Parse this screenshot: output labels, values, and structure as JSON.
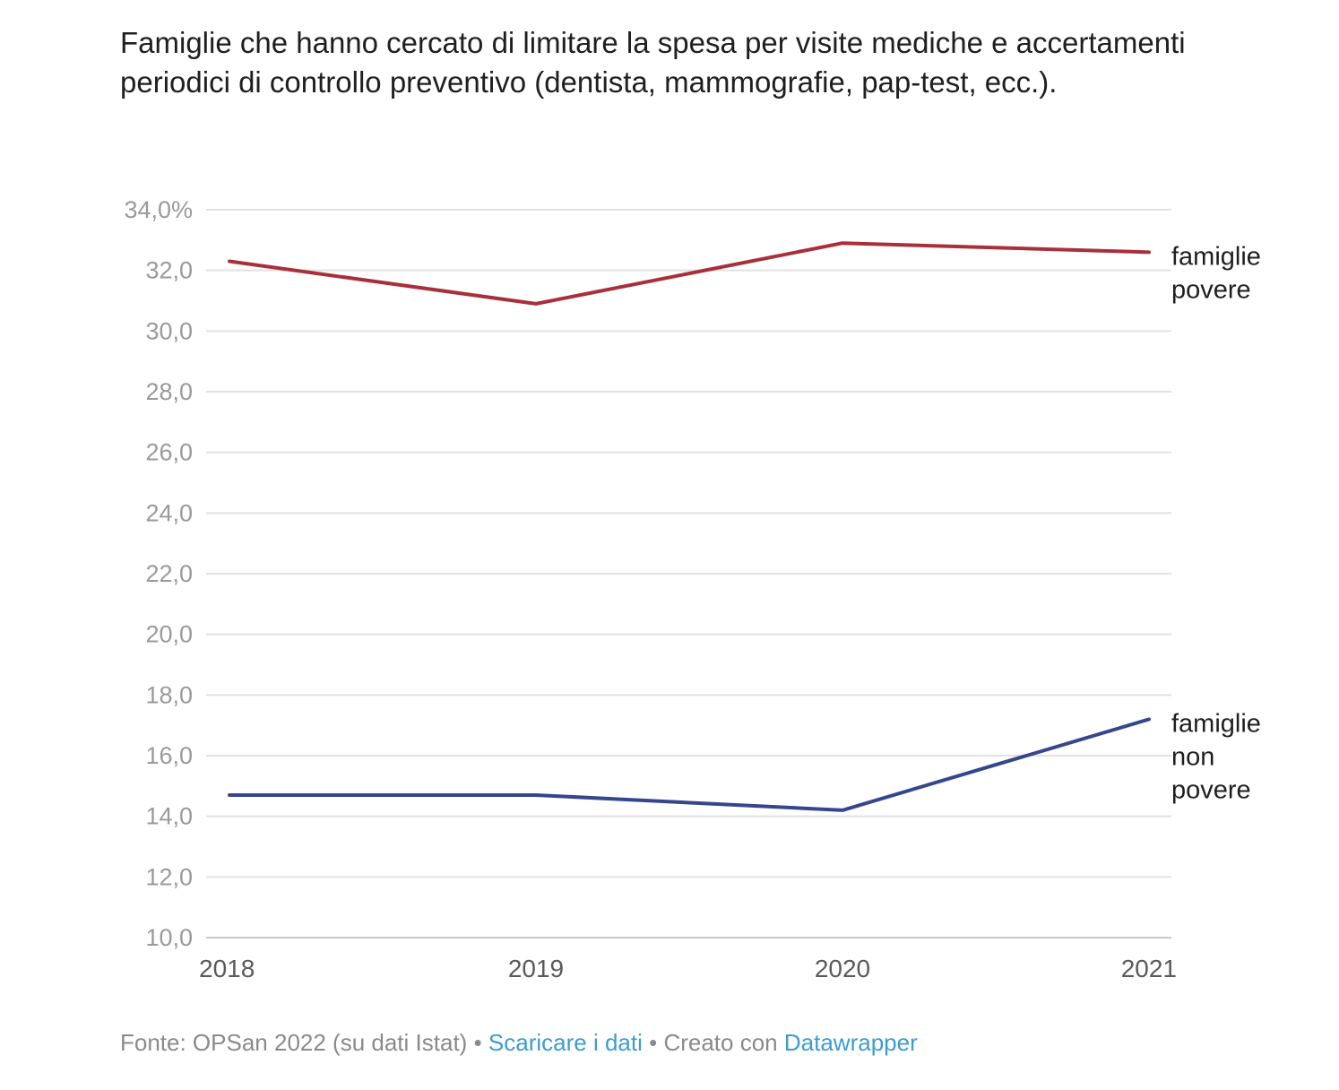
{
  "chart_data": {
    "type": "line",
    "title": "Famiglie che hanno cercato di limitare la spesa per visite mediche e accertamenti periodici di controllo preventivo (dentista, mammografie, pap-test, ecc.).",
    "x": [
      "2018",
      "2019",
      "2020",
      "2021"
    ],
    "y_ticks": [
      "34,0%",
      "32,0",
      "30,0",
      "28,0",
      "26,0",
      "24,0",
      "22,0",
      "20,0",
      "18,0",
      "16,0",
      "14,0",
      "12,0",
      "10,0"
    ],
    "ylim": [
      10,
      34
    ],
    "grid": true,
    "series": [
      {
        "name": "famiglie povere",
        "label_lines": [
          "famiglie",
          "povere"
        ],
        "color": "#a8303a",
        "values": [
          32.3,
          30.9,
          32.9,
          32.6
        ]
      },
      {
        "name": "famiglie non povere",
        "label_lines": [
          "famiglie",
          "non",
          "povere"
        ],
        "color": "#36468d",
        "values": [
          14.7,
          14.7,
          14.2,
          17.2
        ]
      }
    ]
  },
  "footer": {
    "source": "Fonte: OPSan 2022 (su dati Istat)",
    "separator": "•",
    "download_link": "Scaricare i dati",
    "created_with": "Creato con",
    "tool_link": "Datawrapper"
  },
  "colors": {
    "grid": "#e2e2e2",
    "tick_text": "#9a9a9a",
    "link": "#3d9ccf"
  }
}
